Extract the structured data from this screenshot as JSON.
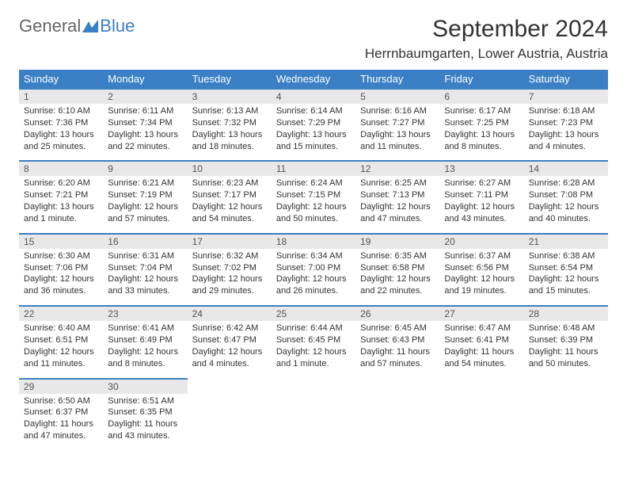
{
  "logo": {
    "text1": "General",
    "text2": "Blue"
  },
  "title": "September 2024",
  "location": "Herrnbaumgarten, Lower Austria, Austria",
  "colors": {
    "header_bg": "#3b7fc4",
    "header_text": "#ffffff",
    "daynum_bg": "#e8e8e8",
    "border": "#3b7fc4",
    "text": "#333333"
  },
  "daysOfWeek": [
    "Sunday",
    "Monday",
    "Tuesday",
    "Wednesday",
    "Thursday",
    "Friday",
    "Saturday"
  ],
  "weeks": [
    [
      {
        "n": "1",
        "sr": "Sunrise: 6:10 AM",
        "ss": "Sunset: 7:36 PM",
        "dl": "Daylight: 13 hours and 25 minutes."
      },
      {
        "n": "2",
        "sr": "Sunrise: 6:11 AM",
        "ss": "Sunset: 7:34 PM",
        "dl": "Daylight: 13 hours and 22 minutes."
      },
      {
        "n": "3",
        "sr": "Sunrise: 6:13 AM",
        "ss": "Sunset: 7:32 PM",
        "dl": "Daylight: 13 hours and 18 minutes."
      },
      {
        "n": "4",
        "sr": "Sunrise: 6:14 AM",
        "ss": "Sunset: 7:29 PM",
        "dl": "Daylight: 13 hours and 15 minutes."
      },
      {
        "n": "5",
        "sr": "Sunrise: 6:16 AM",
        "ss": "Sunset: 7:27 PM",
        "dl": "Daylight: 13 hours and 11 minutes."
      },
      {
        "n": "6",
        "sr": "Sunrise: 6:17 AM",
        "ss": "Sunset: 7:25 PM",
        "dl": "Daylight: 13 hours and 8 minutes."
      },
      {
        "n": "7",
        "sr": "Sunrise: 6:18 AM",
        "ss": "Sunset: 7:23 PM",
        "dl": "Daylight: 13 hours and 4 minutes."
      }
    ],
    [
      {
        "n": "8",
        "sr": "Sunrise: 6:20 AM",
        "ss": "Sunset: 7:21 PM",
        "dl": "Daylight: 13 hours and 1 minute."
      },
      {
        "n": "9",
        "sr": "Sunrise: 6:21 AM",
        "ss": "Sunset: 7:19 PM",
        "dl": "Daylight: 12 hours and 57 minutes."
      },
      {
        "n": "10",
        "sr": "Sunrise: 6:23 AM",
        "ss": "Sunset: 7:17 PM",
        "dl": "Daylight: 12 hours and 54 minutes."
      },
      {
        "n": "11",
        "sr": "Sunrise: 6:24 AM",
        "ss": "Sunset: 7:15 PM",
        "dl": "Daylight: 12 hours and 50 minutes."
      },
      {
        "n": "12",
        "sr": "Sunrise: 6:25 AM",
        "ss": "Sunset: 7:13 PM",
        "dl": "Daylight: 12 hours and 47 minutes."
      },
      {
        "n": "13",
        "sr": "Sunrise: 6:27 AM",
        "ss": "Sunset: 7:11 PM",
        "dl": "Daylight: 12 hours and 43 minutes."
      },
      {
        "n": "14",
        "sr": "Sunrise: 6:28 AM",
        "ss": "Sunset: 7:08 PM",
        "dl": "Daylight: 12 hours and 40 minutes."
      }
    ],
    [
      {
        "n": "15",
        "sr": "Sunrise: 6:30 AM",
        "ss": "Sunset: 7:06 PM",
        "dl": "Daylight: 12 hours and 36 minutes."
      },
      {
        "n": "16",
        "sr": "Sunrise: 6:31 AM",
        "ss": "Sunset: 7:04 PM",
        "dl": "Daylight: 12 hours and 33 minutes."
      },
      {
        "n": "17",
        "sr": "Sunrise: 6:32 AM",
        "ss": "Sunset: 7:02 PM",
        "dl": "Daylight: 12 hours and 29 minutes."
      },
      {
        "n": "18",
        "sr": "Sunrise: 6:34 AM",
        "ss": "Sunset: 7:00 PM",
        "dl": "Daylight: 12 hours and 26 minutes."
      },
      {
        "n": "19",
        "sr": "Sunrise: 6:35 AM",
        "ss": "Sunset: 6:58 PM",
        "dl": "Daylight: 12 hours and 22 minutes."
      },
      {
        "n": "20",
        "sr": "Sunrise: 6:37 AM",
        "ss": "Sunset: 6:56 PM",
        "dl": "Daylight: 12 hours and 19 minutes."
      },
      {
        "n": "21",
        "sr": "Sunrise: 6:38 AM",
        "ss": "Sunset: 6:54 PM",
        "dl": "Daylight: 12 hours and 15 minutes."
      }
    ],
    [
      {
        "n": "22",
        "sr": "Sunrise: 6:40 AM",
        "ss": "Sunset: 6:51 PM",
        "dl": "Daylight: 12 hours and 11 minutes."
      },
      {
        "n": "23",
        "sr": "Sunrise: 6:41 AM",
        "ss": "Sunset: 6:49 PM",
        "dl": "Daylight: 12 hours and 8 minutes."
      },
      {
        "n": "24",
        "sr": "Sunrise: 6:42 AM",
        "ss": "Sunset: 6:47 PM",
        "dl": "Daylight: 12 hours and 4 minutes."
      },
      {
        "n": "25",
        "sr": "Sunrise: 6:44 AM",
        "ss": "Sunset: 6:45 PM",
        "dl": "Daylight: 12 hours and 1 minute."
      },
      {
        "n": "26",
        "sr": "Sunrise: 6:45 AM",
        "ss": "Sunset: 6:43 PM",
        "dl": "Daylight: 11 hours and 57 minutes."
      },
      {
        "n": "27",
        "sr": "Sunrise: 6:47 AM",
        "ss": "Sunset: 6:41 PM",
        "dl": "Daylight: 11 hours and 54 minutes."
      },
      {
        "n": "28",
        "sr": "Sunrise: 6:48 AM",
        "ss": "Sunset: 6:39 PM",
        "dl": "Daylight: 11 hours and 50 minutes."
      }
    ],
    [
      {
        "n": "29",
        "sr": "Sunrise: 6:50 AM",
        "ss": "Sunset: 6:37 PM",
        "dl": "Daylight: 11 hours and 47 minutes."
      },
      {
        "n": "30",
        "sr": "Sunrise: 6:51 AM",
        "ss": "Sunset: 6:35 PM",
        "dl": "Daylight: 11 hours and 43 minutes."
      },
      null,
      null,
      null,
      null,
      null
    ]
  ]
}
